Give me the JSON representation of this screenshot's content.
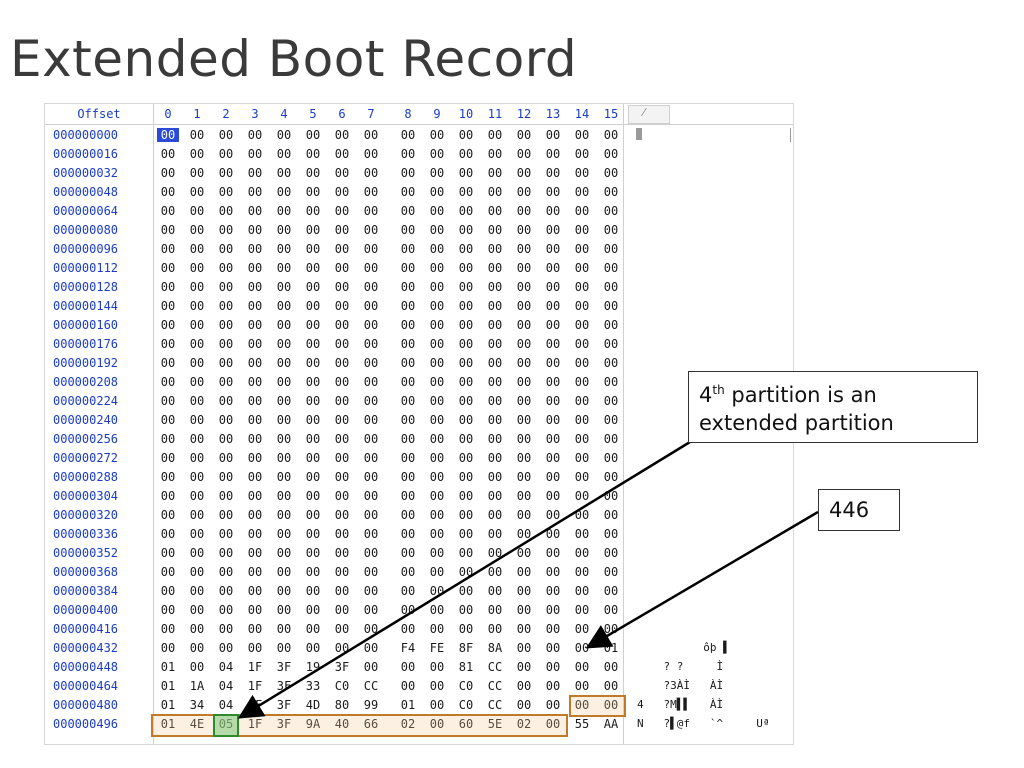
{
  "slide": {
    "title": "Extended Boot Record"
  },
  "hexview": {
    "offset_header": "Offset",
    "columns": [
      "0",
      "1",
      "2",
      "3",
      "4",
      "5",
      "6",
      "7",
      "8",
      "9",
      "10",
      "11",
      "12",
      "13",
      "14",
      "15"
    ],
    "ascii_header_glyph": "⁄",
    "rows": [
      {
        "offset": "000000000",
        "bytes": [
          "00",
          "00",
          "00",
          "00",
          "00",
          "00",
          "00",
          "00",
          "00",
          "00",
          "00",
          "00",
          "00",
          "00",
          "00",
          "00"
        ],
        "ascii": ""
      },
      {
        "offset": "000000016",
        "bytes": [
          "00",
          "00",
          "00",
          "00",
          "00",
          "00",
          "00",
          "00",
          "00",
          "00",
          "00",
          "00",
          "00",
          "00",
          "00",
          "00"
        ],
        "ascii": ""
      },
      {
        "offset": "000000032",
        "bytes": [
          "00",
          "00",
          "00",
          "00",
          "00",
          "00",
          "00",
          "00",
          "00",
          "00",
          "00",
          "00",
          "00",
          "00",
          "00",
          "00"
        ],
        "ascii": ""
      },
      {
        "offset": "000000048",
        "bytes": [
          "00",
          "00",
          "00",
          "00",
          "00",
          "00",
          "00",
          "00",
          "00",
          "00",
          "00",
          "00",
          "00",
          "00",
          "00",
          "00"
        ],
        "ascii": ""
      },
      {
        "offset": "000000064",
        "bytes": [
          "00",
          "00",
          "00",
          "00",
          "00",
          "00",
          "00",
          "00",
          "00",
          "00",
          "00",
          "00",
          "00",
          "00",
          "00",
          "00"
        ],
        "ascii": ""
      },
      {
        "offset": "000000080",
        "bytes": [
          "00",
          "00",
          "00",
          "00",
          "00",
          "00",
          "00",
          "00",
          "00",
          "00",
          "00",
          "00",
          "00",
          "00",
          "00",
          "00"
        ],
        "ascii": ""
      },
      {
        "offset": "000000096",
        "bytes": [
          "00",
          "00",
          "00",
          "00",
          "00",
          "00",
          "00",
          "00",
          "00",
          "00",
          "00",
          "00",
          "00",
          "00",
          "00",
          "00"
        ],
        "ascii": ""
      },
      {
        "offset": "000000112",
        "bytes": [
          "00",
          "00",
          "00",
          "00",
          "00",
          "00",
          "00",
          "00",
          "00",
          "00",
          "00",
          "00",
          "00",
          "00",
          "00",
          "00"
        ],
        "ascii": ""
      },
      {
        "offset": "000000128",
        "bytes": [
          "00",
          "00",
          "00",
          "00",
          "00",
          "00",
          "00",
          "00",
          "00",
          "00",
          "00",
          "00",
          "00",
          "00",
          "00",
          "00"
        ],
        "ascii": ""
      },
      {
        "offset": "000000144",
        "bytes": [
          "00",
          "00",
          "00",
          "00",
          "00",
          "00",
          "00",
          "00",
          "00",
          "00",
          "00",
          "00",
          "00",
          "00",
          "00",
          "00"
        ],
        "ascii": ""
      },
      {
        "offset": "000000160",
        "bytes": [
          "00",
          "00",
          "00",
          "00",
          "00",
          "00",
          "00",
          "00",
          "00",
          "00",
          "00",
          "00",
          "00",
          "00",
          "00",
          "00"
        ],
        "ascii": ""
      },
      {
        "offset": "000000176",
        "bytes": [
          "00",
          "00",
          "00",
          "00",
          "00",
          "00",
          "00",
          "00",
          "00",
          "00",
          "00",
          "00",
          "00",
          "00",
          "00",
          "00"
        ],
        "ascii": ""
      },
      {
        "offset": "000000192",
        "bytes": [
          "00",
          "00",
          "00",
          "00",
          "00",
          "00",
          "00",
          "00",
          "00",
          "00",
          "00",
          "00",
          "00",
          "00",
          "00",
          "00"
        ],
        "ascii": ""
      },
      {
        "offset": "000000208",
        "bytes": [
          "00",
          "00",
          "00",
          "00",
          "00",
          "00",
          "00",
          "00",
          "00",
          "00",
          "00",
          "00",
          "00",
          "00",
          "00",
          "00"
        ],
        "ascii": ""
      },
      {
        "offset": "000000224",
        "bytes": [
          "00",
          "00",
          "00",
          "00",
          "00",
          "00",
          "00",
          "00",
          "00",
          "00",
          "00",
          "00",
          "00",
          "00",
          "00",
          "00"
        ],
        "ascii": ""
      },
      {
        "offset": "000000240",
        "bytes": [
          "00",
          "00",
          "00",
          "00",
          "00",
          "00",
          "00",
          "00",
          "00",
          "00",
          "00",
          "00",
          "00",
          "00",
          "00",
          "00"
        ],
        "ascii": ""
      },
      {
        "offset": "000000256",
        "bytes": [
          "00",
          "00",
          "00",
          "00",
          "00",
          "00",
          "00",
          "00",
          "00",
          "00",
          "00",
          "00",
          "00",
          "00",
          "00",
          "00"
        ],
        "ascii": ""
      },
      {
        "offset": "000000272",
        "bytes": [
          "00",
          "00",
          "00",
          "00",
          "00",
          "00",
          "00",
          "00",
          "00",
          "00",
          "00",
          "00",
          "00",
          "00",
          "00",
          "00"
        ],
        "ascii": ""
      },
      {
        "offset": "000000288",
        "bytes": [
          "00",
          "00",
          "00",
          "00",
          "00",
          "00",
          "00",
          "00",
          "00",
          "00",
          "00",
          "00",
          "00",
          "00",
          "00",
          "00"
        ],
        "ascii": ""
      },
      {
        "offset": "000000304",
        "bytes": [
          "00",
          "00",
          "00",
          "00",
          "00",
          "00",
          "00",
          "00",
          "00",
          "00",
          "00",
          "00",
          "00",
          "00",
          "00",
          "00"
        ],
        "ascii": ""
      },
      {
        "offset": "000000320",
        "bytes": [
          "00",
          "00",
          "00",
          "00",
          "00",
          "00",
          "00",
          "00",
          "00",
          "00",
          "00",
          "00",
          "00",
          "00",
          "00",
          "00"
        ],
        "ascii": ""
      },
      {
        "offset": "000000336",
        "bytes": [
          "00",
          "00",
          "00",
          "00",
          "00",
          "00",
          "00",
          "00",
          "00",
          "00",
          "00",
          "00",
          "00",
          "00",
          "00",
          "00"
        ],
        "ascii": ""
      },
      {
        "offset": "000000352",
        "bytes": [
          "00",
          "00",
          "00",
          "00",
          "00",
          "00",
          "00",
          "00",
          "00",
          "00",
          "00",
          "00",
          "00",
          "00",
          "00",
          "00"
        ],
        "ascii": ""
      },
      {
        "offset": "000000368",
        "bytes": [
          "00",
          "00",
          "00",
          "00",
          "00",
          "00",
          "00",
          "00",
          "00",
          "00",
          "00",
          "00",
          "00",
          "00",
          "00",
          "00"
        ],
        "ascii": ""
      },
      {
        "offset": "000000384",
        "bytes": [
          "00",
          "00",
          "00",
          "00",
          "00",
          "00",
          "00",
          "00",
          "00",
          "00",
          "00",
          "00",
          "00",
          "00",
          "00",
          "00"
        ],
        "ascii": ""
      },
      {
        "offset": "000000400",
        "bytes": [
          "00",
          "00",
          "00",
          "00",
          "00",
          "00",
          "00",
          "00",
          "00",
          "00",
          "00",
          "00",
          "00",
          "00",
          "00",
          "00"
        ],
        "ascii": ""
      },
      {
        "offset": "000000416",
        "bytes": [
          "00",
          "00",
          "00",
          "00",
          "00",
          "00",
          "00",
          "00",
          "00",
          "00",
          "00",
          "00",
          "00",
          "00",
          "00",
          "00"
        ],
        "ascii": ""
      },
      {
        "offset": "000000432",
        "bytes": [
          "00",
          "00",
          "00",
          "00",
          "00",
          "00",
          "00",
          "00",
          "F4",
          "FE",
          "8F",
          "8A",
          "00",
          "00",
          "00",
          "01"
        ],
        "ascii": "          ôþ ▌"
      },
      {
        "offset": "000000448",
        "bytes": [
          "01",
          "00",
          "04",
          "1F",
          "3F",
          "19",
          "3F",
          "00",
          "00",
          "00",
          "81",
          "CC",
          "00",
          "00",
          "00",
          "00"
        ],
        "ascii": "    ? ?     Ì"
      },
      {
        "offset": "000000464",
        "bytes": [
          "01",
          "1A",
          "04",
          "1F",
          "3F",
          "33",
          "C0",
          "CC",
          "00",
          "00",
          "C0",
          "CC",
          "00",
          "00",
          "00",
          "00"
        ],
        "ascii": "    ?3ÀÌ   ÀÌ"
      },
      {
        "offset": "000000480",
        "bytes": [
          "01",
          "34",
          "04",
          "1F",
          "3F",
          "4D",
          "80",
          "99",
          "01",
          "00",
          "C0",
          "CC",
          "00",
          "00",
          "00",
          "00"
        ],
        "ascii": "4   ?M▌▌   ÀÌ"
      },
      {
        "offset": "000000496",
        "bytes": [
          "01",
          "4E",
          "05",
          "1F",
          "3F",
          "9A",
          "40",
          "66",
          "02",
          "00",
          "60",
          "5E",
          "02",
          "00",
          "55",
          "AA"
        ],
        "ascii": "N   ?▌@f   `^     Uª"
      }
    ]
  },
  "callouts": {
    "extended": {
      "sup_base": "4",
      "sup": "th",
      "line1_rest": " partition is an",
      "line2": "extended partition"
    },
    "offset446": {
      "text": "446"
    }
  },
  "colors": {
    "offset_blue": "#1a3cc8",
    "highlight_orange": "#c07a2a",
    "highlight_green": "#2e8a2e"
  }
}
